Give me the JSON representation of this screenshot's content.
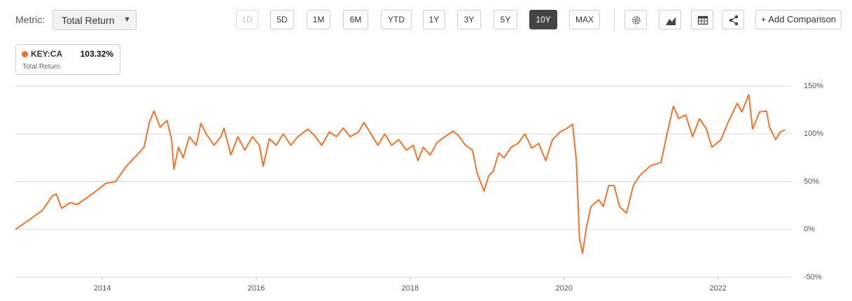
{
  "toolbar": {
    "metric_label": "Metric:",
    "metric_value": "Total Return",
    "ranges": [
      {
        "label": "1D",
        "state": "disabled"
      },
      {
        "label": "5D"
      },
      {
        "label": "1M"
      },
      {
        "label": "6M"
      },
      {
        "label": "YTD"
      },
      {
        "label": "1Y"
      },
      {
        "label": "3Y"
      },
      {
        "label": "5Y"
      },
      {
        "label": "10Y",
        "state": "active"
      },
      {
        "label": "MAX"
      }
    ],
    "add_comparison": "+ Add Comparison"
  },
  "legend": {
    "value": "103.32%",
    "metric": "Total Return"
  },
  "chart_data": {
    "type": "line",
    "x": [
      2012.87,
      2013.04,
      2013.22,
      2013.35,
      2013.4,
      2013.47,
      2013.58,
      2013.67,
      2013.76,
      2013.9,
      2014.04,
      2014.17,
      2014.31,
      2014.45,
      2014.54,
      2014.61,
      2014.67,
      2014.75,
      2014.84,
      2014.9,
      2014.93,
      2014.99,
      2015.05,
      2015.13,
      2015.22,
      2015.28,
      2015.35,
      2015.45,
      2015.54,
      2015.58,
      2015.67,
      2015.76,
      2015.85,
      2015.95,
      2016.04,
      2016.09,
      2016.17,
      2016.26,
      2016.35,
      2016.45,
      2016.54,
      2016.67,
      2016.76,
      2016.85,
      2016.95,
      2017.04,
      2017.13,
      2017.22,
      2017.33,
      2017.4,
      2017.49,
      2017.58,
      2017.67,
      2017.76,
      2017.85,
      2017.95,
      2018.04,
      2018.1,
      2018.17,
      2018.26,
      2018.35,
      2018.45,
      2018.56,
      2018.63,
      2018.72,
      2018.81,
      2018.87,
      2018.96,
      2019.02,
      2019.08,
      2019.15,
      2019.22,
      2019.31,
      2019.4,
      2019.49,
      2019.58,
      2019.67,
      2019.76,
      2019.85,
      2019.95,
      2020.04,
      2020.11,
      2020.16,
      2020.2,
      2020.24,
      2020.29,
      2020.35,
      2020.45,
      2020.51,
      2020.58,
      2020.65,
      2020.72,
      2020.81,
      2020.9,
      2020.99,
      2021.13,
      2021.26,
      2021.33,
      2021.42,
      2021.49,
      2021.58,
      2021.67,
      2021.76,
      2021.85,
      2021.92,
      2022.04,
      2022.13,
      2022.25,
      2022.31,
      2022.4,
      2022.45,
      2022.54,
      2022.63,
      2022.67,
      2022.75,
      2022.81,
      2022.87
    ],
    "series": [
      {
        "name": "KEY:CA",
        "color": "#f47328",
        "values": [
          0,
          9.5,
          20,
          35,
          37,
          22,
          28,
          26,
          31,
          39,
          48,
          50,
          66,
          78,
          86,
          112,
          124,
          107,
          114,
          94,
          63,
          86,
          75,
          97,
          88,
          111,
          100,
          88,
          97,
          106,
          78,
          97,
          83,
          97,
          88,
          66,
          95,
          88,
          100,
          88,
          97,
          105,
          98,
          88,
          102,
          97,
          106,
          97,
          102,
          112,
          100,
          88,
          100,
          88,
          94,
          83,
          88,
          72,
          86,
          78,
          91,
          97,
          103,
          98,
          88,
          83,
          59,
          40,
          56,
          61,
          80,
          75,
          86,
          90,
          100,
          85,
          90,
          72,
          94,
          102,
          106,
          110,
          72,
          -9,
          -25,
          2,
          24,
          31,
          24,
          46,
          46,
          24,
          17,
          46,
          57,
          67,
          70,
          97,
          129,
          116,
          120,
          97,
          116,
          105,
          86,
          94,
          112,
          132,
          123,
          141,
          105,
          123,
          124,
          107,
          94,
          102,
          104
        ]
      }
    ],
    "xlim": [
      2012.87,
      2022.95
    ],
    "xticks": [
      2014,
      2016,
      2018,
      2020,
      2022
    ],
    "ylim": [
      -50,
      150
    ],
    "yticks": [
      {
        "value": -50,
        "label": "-50%"
      },
      {
        "value": 0,
        "label": "0%"
      },
      {
        "value": 50,
        "label": "50%"
      },
      {
        "value": 100,
        "label": "100%"
      },
      {
        "value": 150,
        "label": "150%"
      }
    ],
    "grid": true
  }
}
